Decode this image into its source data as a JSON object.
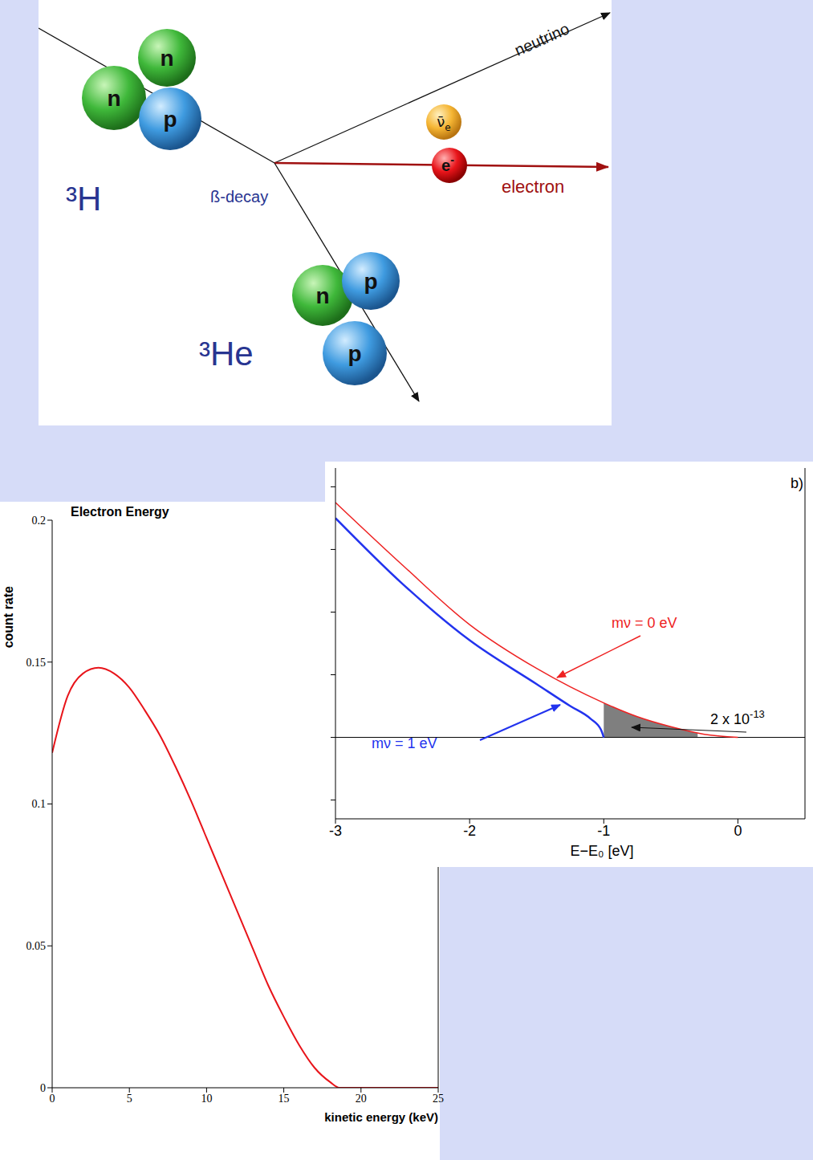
{
  "diagram": {
    "parent": {
      "label": "³H",
      "nucleons": [
        "n",
        "n",
        "p"
      ]
    },
    "process": "ß-decay",
    "daughter": {
      "label": "³He",
      "nucleons": [
        "n",
        "p",
        "p"
      ]
    },
    "electron": {
      "symbol": "e",
      "superscript": "-",
      "name": "electron"
    },
    "neutrino": {
      "symbol": "ν̄",
      "subscript": "e",
      "name": "neutrino"
    }
  },
  "chart_data": [
    {
      "type": "line",
      "title": "Electron Energy",
      "x_label": "kinetic energy (keV)",
      "y_label": "count rate",
      "color": "#e8141a",
      "x": [
        0,
        1,
        2,
        3,
        4,
        5,
        6,
        7,
        8,
        9,
        10,
        11,
        12,
        13,
        14,
        15,
        16,
        17,
        18,
        18.6,
        25
      ],
      "values": [
        0.118,
        0.138,
        0.146,
        0.148,
        0.146,
        0.141,
        0.133,
        0.124,
        0.113,
        0.101,
        0.088,
        0.075,
        0.062,
        0.049,
        0.036,
        0.025,
        0.015,
        0.007,
        0.002,
        0,
        0
      ],
      "xlim": [
        0,
        25
      ],
      "xticks": [
        0,
        5,
        10,
        15,
        20,
        25
      ],
      "ylim": [
        0,
        0.2
      ],
      "yticks": [
        0,
        0.05,
        0.1,
        0.15,
        0.2
      ]
    },
    {
      "type": "line",
      "panel_label": "b)",
      "x_label": "E−E₀ [eV]",
      "xlim": [
        -3,
        0.5
      ],
      "xticks": [
        -3,
        -2,
        -1,
        0
      ],
      "ylim": [
        -1.3,
        4.3
      ],
      "yticks": [
        -1,
        0,
        1,
        2,
        3,
        4
      ],
      "tick_labels": "x",
      "series": [
        {
          "name": "mν = 0 eV",
          "color": "#ee2222",
          "x": [
            -3,
            -2.5,
            -2,
            -1.5,
            -1,
            -0.75,
            -0.5,
            -0.25,
            0
          ],
          "values": [
            3.75,
            2.75,
            1.8,
            1.1,
            0.55,
            0.33,
            0.17,
            0.05,
            0
          ]
        },
        {
          "name": "mν = 1 eV",
          "color": "#2233ee",
          "x": [
            -3,
            -2.5,
            -2,
            -1.5,
            -1.25,
            -1.1,
            -1.02,
            -1
          ],
          "values": [
            3.5,
            2.45,
            1.55,
            0.85,
            0.5,
            0.3,
            0.12,
            0
          ]
        }
      ],
      "shaded_region": {
        "x": [
          -1,
          -0.75,
          -0.5,
          -0.3
        ],
        "values": [
          0.55,
          0.33,
          0.17,
          0.07
        ],
        "color": "#7f7f7f",
        "label": {
          "text": "2 x 10",
          "superscript": "-13"
        }
      }
    }
  ]
}
